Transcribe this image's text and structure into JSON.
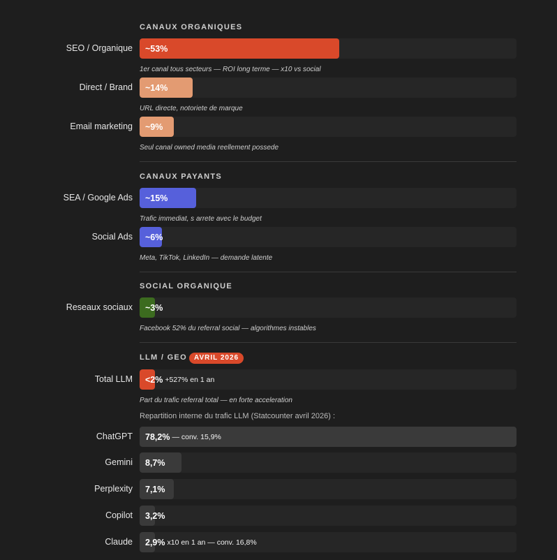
{
  "colors": {
    "seo": "#d9492a",
    "secondary_organic": "#e39b72",
    "paid": "#5660db",
    "social": "#3c6b1f",
    "llm_total": "#d9492a",
    "llm_share": "#3a3a3a"
  },
  "sections": {
    "organic": "CANAUX ORGANIQUES",
    "paid": "CANAUX PAYANTS",
    "social": "SOCIAL ORGANIQUE",
    "llm": "LLM / GEO",
    "llm_badge": "AVRIL 2026"
  },
  "llm_breakdown_caption": "Repartition interne du trafic LLM (Statcounter avril 2026) :",
  "chart_data": [
    {
      "type": "bar",
      "title": "CANAUX ORGANIQUES",
      "categories": [
        "SEO / Organique",
        "Direct / Brand",
        "Email marketing"
      ],
      "values": [
        53,
        14,
        9
      ],
      "labels": [
        "~53%",
        "~14%",
        "~9%"
      ],
      "notes": [
        "1er canal tous secteurs — ROI long terme — x10 vs social",
        "URL directe, notoriete de marque",
        "Seul canal owned media reellement possede"
      ],
      "ylim": [
        0,
        100
      ]
    },
    {
      "type": "bar",
      "title": "CANAUX PAYANTS",
      "categories": [
        "SEA / Google Ads",
        "Social Ads"
      ],
      "values": [
        15,
        6
      ],
      "labels": [
        "~15%",
        "~6%"
      ],
      "notes": [
        "Trafic immediat, s arrete avec le budget",
        "Meta, TikTok, LinkedIn — demande latente"
      ],
      "ylim": [
        0,
        100
      ]
    },
    {
      "type": "bar",
      "title": "SOCIAL ORGANIQUE",
      "categories": [
        "Reseaux sociaux"
      ],
      "values": [
        3
      ],
      "labels": [
        "~3%"
      ],
      "notes": [
        "Facebook 52% du referral social — algorithmes instables"
      ],
      "ylim": [
        0,
        100
      ]
    },
    {
      "type": "bar",
      "title": "LLM / GEO",
      "categories": [
        "Total LLM"
      ],
      "values": [
        2
      ],
      "labels": [
        "<2%"
      ],
      "extras": [
        "+527% en 1 an"
      ],
      "notes": [
        "Part du trafic referral total — en forte acceleration"
      ],
      "ylim": [
        0,
        100
      ]
    },
    {
      "type": "bar",
      "title": "Repartition interne du trafic LLM (Statcounter avril 2026) :",
      "categories": [
        "ChatGPT",
        "Gemini",
        "Perplexity",
        "Copilot",
        "Claude"
      ],
      "values": [
        78.2,
        8.7,
        7.1,
        3.2,
        2.9
      ],
      "labels": [
        "78,2%",
        "8,7%",
        "7,1%",
        "3,2%",
        "2,9%"
      ],
      "extras": [
        "— conv. 15,9%",
        "",
        "",
        "",
        "x10 en 1 an — conv. 16,8%"
      ],
      "ylim": [
        0,
        78.2
      ]
    }
  ]
}
